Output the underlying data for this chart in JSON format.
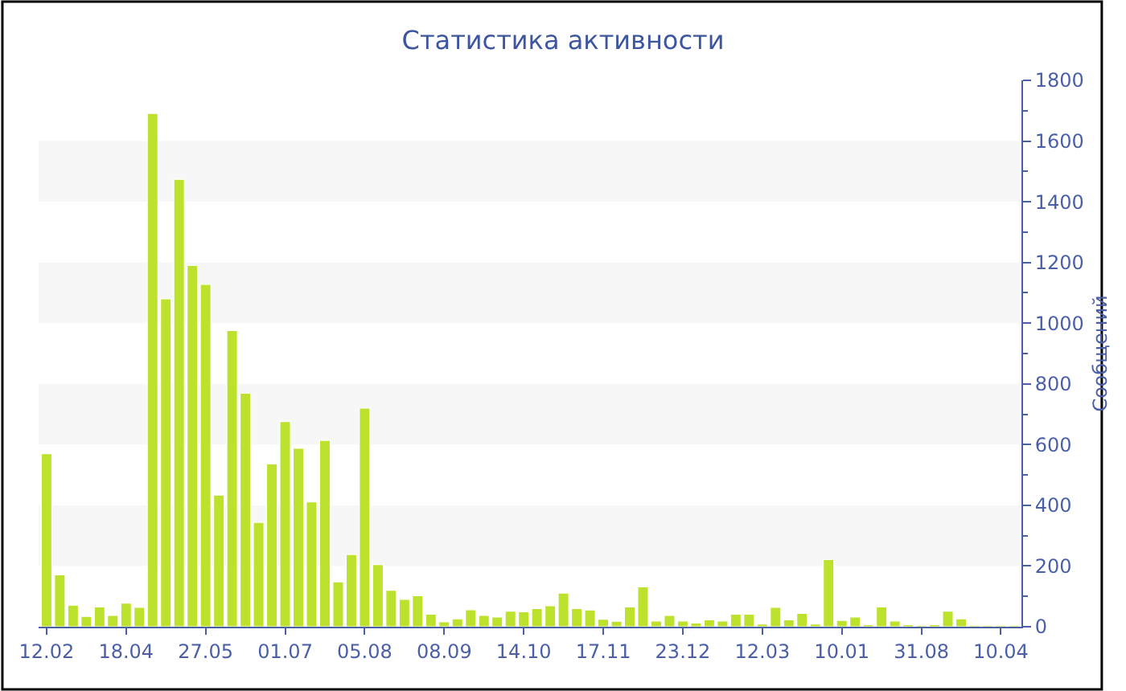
{
  "chart_data": {
    "type": "bar",
    "title": "Статистика активности",
    "ylabel": "Сообщений",
    "categories": [
      "12.02",
      null,
      null,
      null,
      null,
      null,
      "18.04",
      null,
      null,
      null,
      null,
      null,
      "27.05",
      null,
      null,
      null,
      null,
      null,
      "01.07",
      null,
      null,
      null,
      null,
      null,
      "05.08",
      null,
      null,
      null,
      null,
      null,
      "08.09",
      null,
      null,
      null,
      null,
      null,
      "14.10",
      null,
      null,
      null,
      null,
      null,
      "17.11",
      null,
      null,
      null,
      null,
      null,
      "23.12",
      null,
      null,
      null,
      null,
      null,
      "12.03",
      null,
      null,
      null,
      null,
      null,
      "10.01",
      null,
      null,
      null,
      null,
      null,
      "31.08",
      null,
      null,
      null,
      null,
      null,
      "10.04",
      null
    ],
    "values": [
      570,
      171,
      71,
      34,
      65,
      37,
      78,
      64,
      1691,
      1080,
      1474,
      1190,
      1128,
      434,
      976,
      769,
      344,
      536,
      676,
      588,
      411,
      614,
      148,
      238,
      720,
      205,
      120,
      90,
      102,
      41,
      16,
      26,
      56,
      37,
      32,
      51,
      49,
      60,
      69,
      111,
      60,
      55,
      25,
      18,
      65,
      131,
      19,
      37,
      19,
      12,
      23,
      19,
      41,
      41,
      9,
      64,
      23,
      44,
      9,
      221,
      21,
      32,
      7,
      65,
      19,
      7,
      5,
      7,
      51,
      26,
      5,
      5,
      5,
      5
    ],
    "color": "#bde22d",
    "ylim": [
      0,
      1800
    ],
    "yticks": [
      0,
      200,
      400,
      600,
      800,
      1000,
      1200,
      1400,
      1600,
      1800
    ],
    "bands": [
      {
        "axis": "y",
        "from": 200,
        "to": 400,
        "color": "#f7f7f7"
      },
      {
        "axis": "y",
        "from": 600,
        "to": 800,
        "color": "#f7f7f7"
      },
      {
        "axis": "y",
        "from": 1000,
        "to": 1200,
        "color": "#f7f7f7"
      },
      {
        "axis": "y",
        "from": 1400,
        "to": 1600,
        "color": "#f7f7f7"
      }
    ]
  }
}
